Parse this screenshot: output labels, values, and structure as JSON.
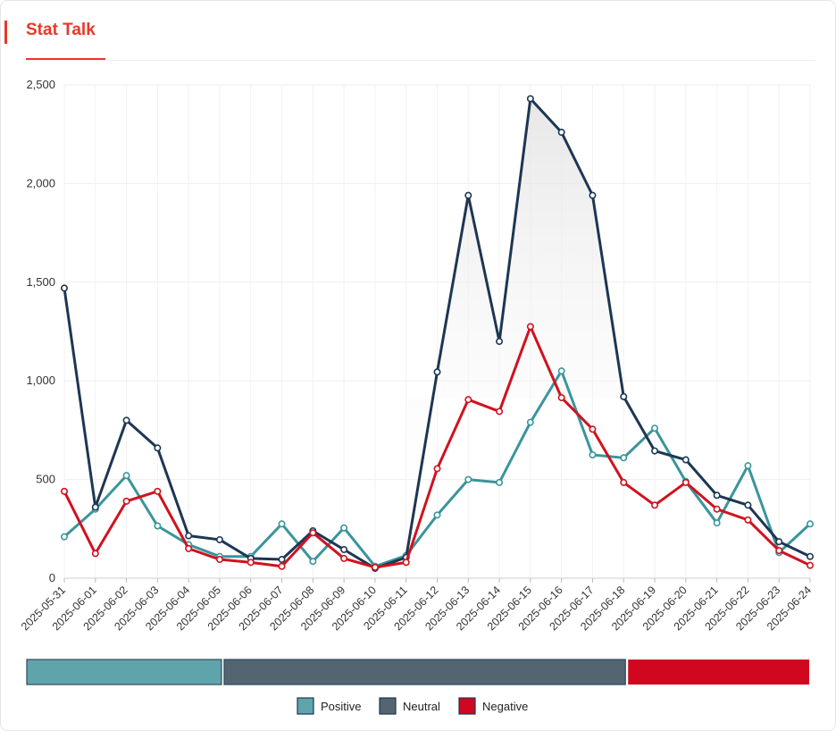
{
  "header": {
    "title": "Stat Talk"
  },
  "chart_data": {
    "type": "line",
    "title": "Stat Talk",
    "xlabel": "",
    "ylabel": "",
    "ylim": [
      0,
      2500
    ],
    "yticks": [
      0,
      500,
      1000,
      1500,
      2000,
      2500
    ],
    "ytick_labels": [
      "0",
      "500",
      "1,000",
      "1,500",
      "2,000",
      "2,500"
    ],
    "grid": true,
    "legend_position": "bottom",
    "categories": [
      "2025-05-31",
      "2025-06-01",
      "2025-06-02",
      "2025-06-03",
      "2025-06-04",
      "2025-06-05",
      "2025-06-06",
      "2025-06-07",
      "2025-06-08",
      "2025-06-09",
      "2025-06-10",
      "2025-06-11",
      "2025-06-12",
      "2025-06-13",
      "2025-06-14",
      "2025-06-15",
      "2025-06-16",
      "2025-06-17",
      "2025-06-18",
      "2025-06-19",
      "2025-06-20",
      "2025-06-21",
      "2025-06-22",
      "2025-06-23",
      "2025-06-24"
    ],
    "series": [
      {
        "name": "Positive",
        "color": "#3a959c",
        "values": [
          210,
          350,
          520,
          265,
          170,
          110,
          110,
          275,
          85,
          255,
          60,
          115,
          320,
          500,
          485,
          790,
          1050,
          625,
          610,
          760,
          490,
          280,
          570,
          130,
          275
        ]
      },
      {
        "name": "Neutral",
        "color": "#1d3653",
        "values": [
          1470,
          360,
          800,
          660,
          215,
          195,
          100,
          95,
          240,
          145,
          50,
          105,
          1045,
          1940,
          1200,
          2430,
          2260,
          1940,
          920,
          645,
          600,
          420,
          370,
          185,
          110
        ]
      },
      {
        "name": "Negative",
        "color": "#d0121f",
        "values": [
          440,
          125,
          390,
          440,
          150,
          95,
          80,
          60,
          230,
          100,
          55,
          80,
          555,
          905,
          845,
          1275,
          915,
          755,
          485,
          370,
          485,
          350,
          295,
          140,
          65
        ]
      }
    ],
    "shaded_region": {
      "series": "Neutral",
      "from": "2025-06-11",
      "to": "2025-06-18"
    },
    "range_bar": {
      "segments": [
        {
          "series": "Positive",
          "color": "#5fa4aa",
          "from": "2025-05-31",
          "to": "2025-06-05"
        },
        {
          "series": "Neutral",
          "color": "#536571",
          "from": "2025-06-05",
          "to": "2025-06-18"
        },
        {
          "series": "Negative",
          "color": "#d0071f",
          "from": "2025-06-18",
          "to": "2025-06-24"
        }
      ]
    },
    "legend": [
      {
        "label": "Positive",
        "color": "#5fa4aa"
      },
      {
        "label": "Neutral",
        "color": "#536571"
      },
      {
        "label": "Negative",
        "color": "#d0071f"
      }
    ]
  }
}
